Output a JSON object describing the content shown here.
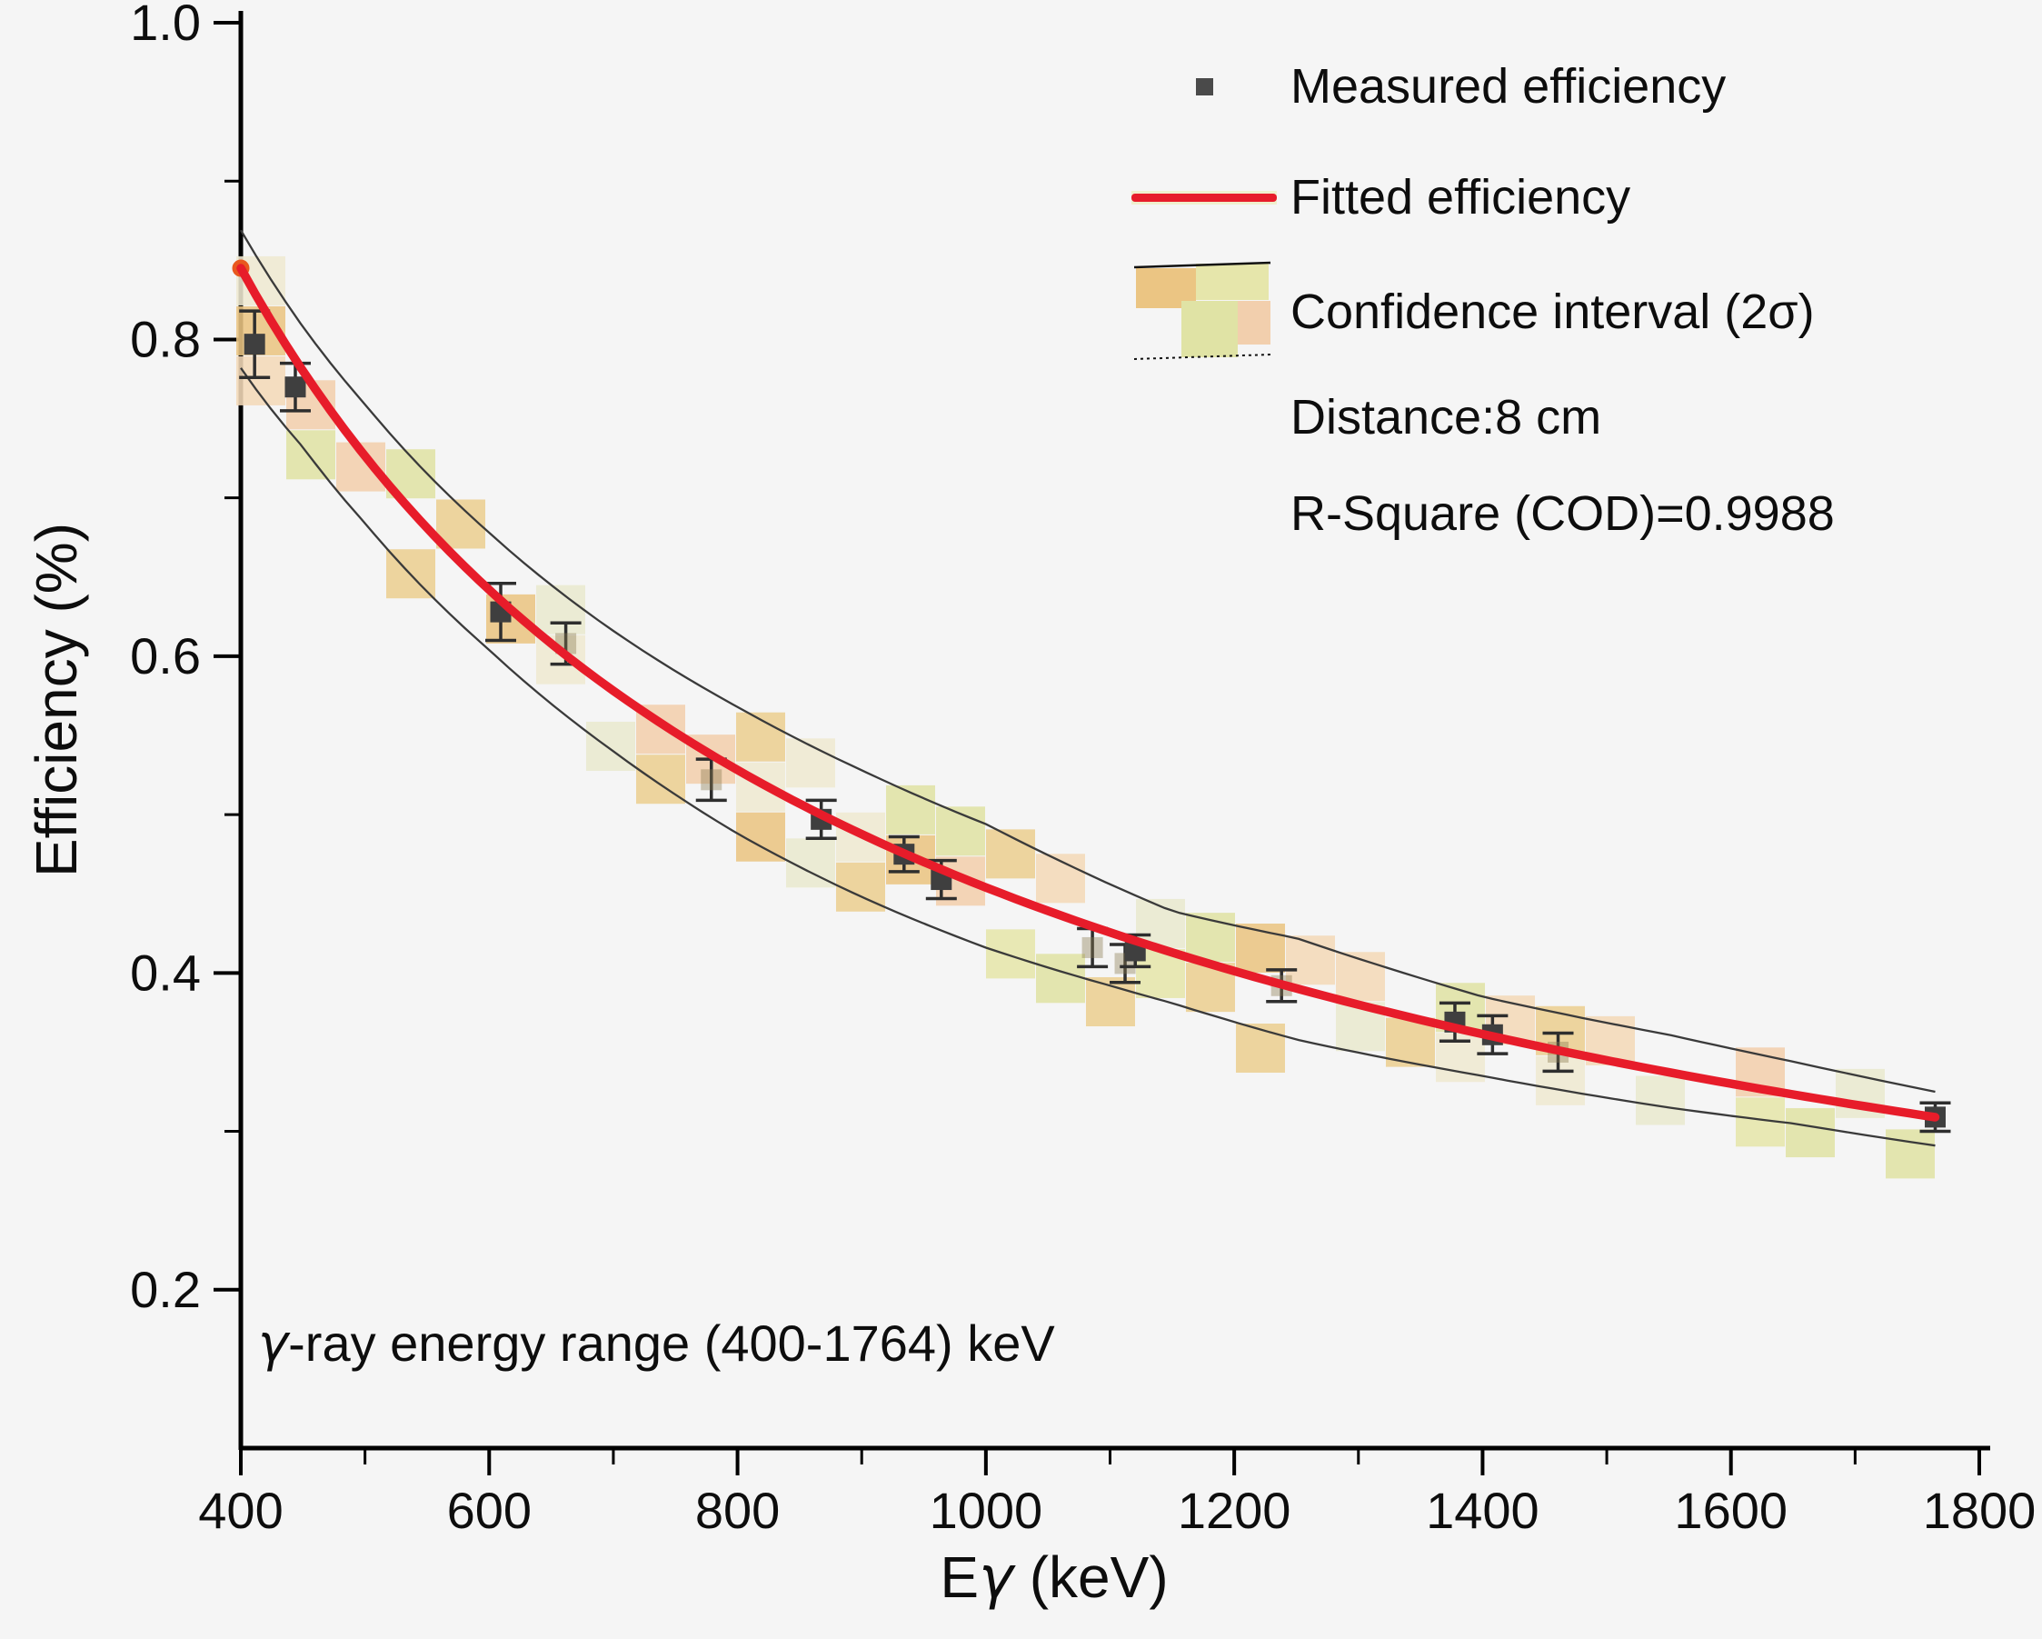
{
  "figure": {
    "background": "#f5f5f5",
    "description": "HPGe detector full-energy-peak efficiency calibration curve"
  },
  "axes": {
    "x_label_parts": {
      "pre": "E",
      "gamma": "γ",
      "post": " (keV)"
    },
    "y_label": "Efficiency (%)"
  },
  "annotation": {
    "gamma": "γ",
    "text": "-ray energy range (400-1764) keV"
  },
  "legend": {
    "measured_label": "Measured efficiency",
    "fitted_label": "Fitted efficiency",
    "confidence_label": "Confidence interval (2σ)",
    "distance_label": "Distance:8 cm",
    "rsquare_label": "R-Square (COD)=0.9988"
  },
  "chart_data": {
    "type": "scatter",
    "title": "",
    "xlabel": "Eγ (keV)",
    "ylabel": "Efficiency (%)",
    "xlim": [
      400,
      1800
    ],
    "ylim": [
      0.1,
      1.0
    ],
    "x_ticks": [
      400,
      600,
      800,
      1000,
      1200,
      1400,
      1600,
      1800
    ],
    "x_minor_ticks": [
      500,
      700,
      900,
      1100,
      1300,
      1500,
      1700
    ],
    "y_ticks": [
      0.2,
      0.4,
      0.6,
      0.8,
      1.0
    ],
    "y_minor_ticks": [
      0.3,
      0.5,
      0.7,
      0.9
    ],
    "grid": false,
    "legend_position": "top-right",
    "annotation": "γ-ray energy range (400-1764) keV",
    "stats": {
      "distance": "8 cm",
      "r_square_cod": 0.9988,
      "sigma_level": "2σ"
    },
    "colors": {
      "fit_line": "#e71c2a",
      "fit_start_blob": "#e8581f",
      "marker": "#3f3f3f",
      "error_bar": "#2e2e2e",
      "band_edge": "#3a3a3a",
      "band_palette": [
        "#e6e6ab",
        "#ebc583",
        "#f2cfad",
        "#e0e3a5",
        "#efe9d2",
        "#f4d9b8",
        "none",
        "#e9e9cf",
        "#eccf92",
        "none",
        "none"
      ]
    },
    "series": [
      {
        "name": "Measured efficiency",
        "type": "scatter",
        "points": [
          {
            "E": 411.1,
            "eff": 0.797,
            "err": 0.021,
            "solid": true
          },
          {
            "E": 443.9,
            "eff": 0.77,
            "err": 0.015,
            "solid": true
          },
          {
            "E": 609.3,
            "eff": 0.628,
            "err": 0.018,
            "solid": true
          },
          {
            "E": 661.7,
            "eff": 0.608,
            "err": 0.013,
            "solid": false
          },
          {
            "E": 778.9,
            "eff": 0.522,
            "err": 0.013,
            "solid": false
          },
          {
            "E": 867.4,
            "eff": 0.497,
            "err": 0.012,
            "solid": true
          },
          {
            "E": 934.1,
            "eff": 0.475,
            "err": 0.011,
            "solid": true
          },
          {
            "E": 964.1,
            "eff": 0.459,
            "err": 0.012,
            "solid": true
          },
          {
            "E": 1085.8,
            "eff": 0.416,
            "err": 0.012,
            "solid": false
          },
          {
            "E": 1112.1,
            "eff": 0.406,
            "err": 0.012,
            "solid": false
          },
          {
            "E": 1120.3,
            "eff": 0.414,
            "err": 0.01,
            "solid": true
          },
          {
            "E": 1238.1,
            "eff": 0.392,
            "err": 0.01,
            "solid": false
          },
          {
            "E": 1377.7,
            "eff": 0.369,
            "err": 0.012,
            "solid": true
          },
          {
            "E": 1408.0,
            "eff": 0.361,
            "err": 0.012,
            "solid": true
          },
          {
            "E": 1460.8,
            "eff": 0.35,
            "err": 0.012,
            "solid": false
          },
          {
            "E": 1764.5,
            "eff": 0.309,
            "err": 0.009,
            "solid": true
          }
        ]
      },
      {
        "name": "Fitted efficiency",
        "type": "line",
        "fit": {
          "form": "power-law",
          "value_at_400keV": 0.845,
          "exponent": -0.678,
          "E_range": [
            400,
            1764.5
          ]
        }
      },
      {
        "name": "Confidence interval (2σ)",
        "type": "band",
        "samples": [
          {
            "E": 400,
            "upper": 0.869,
            "lower": 0.782
          },
          {
            "E": 450,
            "upper": 0.808,
            "lower": 0.732
          },
          {
            "E": 500,
            "upper": 0.759,
            "lower": 0.684
          },
          {
            "E": 600,
            "upper": 0.678,
            "lower": 0.604
          },
          {
            "E": 700,
            "upper": 0.616,
            "lower": 0.54
          },
          {
            "E": 800,
            "upper": 0.568,
            "lower": 0.488
          },
          {
            "E": 900,
            "upper": 0.528,
            "lower": 0.448
          },
          {
            "E": 1000,
            "upper": 0.494,
            "lower": 0.416
          },
          {
            "E": 1100,
            "upper": 0.456,
            "lower": 0.392
          },
          {
            "E": 1150,
            "upper": 0.439,
            "lower": 0.381
          },
          {
            "E": 1250,
            "upper": 0.422,
            "lower": 0.358
          },
          {
            "E": 1400,
            "upper": 0.385,
            "lower": 0.335
          },
          {
            "E": 1550,
            "upper": 0.361,
            "lower": 0.315
          },
          {
            "E": 1650,
            "upper": 0.344,
            "lower": 0.305
          },
          {
            "E": 1764.5,
            "upper": 0.325,
            "lower": 0.291
          }
        ]
      }
    ]
  }
}
